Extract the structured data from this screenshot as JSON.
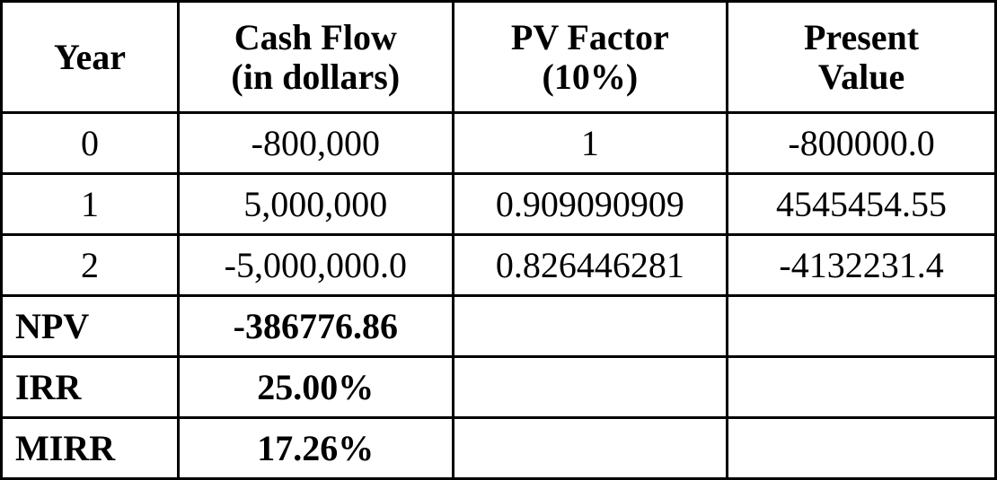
{
  "table": {
    "type": "table",
    "background_color": "#ffffff",
    "border_color": "#000000",
    "border_width": 3,
    "font_family": "Times New Roman",
    "header_fontsize": 40,
    "body_fontsize": 40,
    "columns": [
      {
        "label_line1": "Year",
        "label_line2": "",
        "width_pct": 17.8,
        "align": "center"
      },
      {
        "label_line1": "Cash Flow",
        "label_line2": "(in dollars)",
        "width_pct": 27.6,
        "align": "center"
      },
      {
        "label_line1": "PV Factor",
        "label_line2": "(10%)",
        "width_pct": 27.6,
        "align": "center"
      },
      {
        "label_line1": "Present",
        "label_line2": "Value",
        "width_pct": 27.0,
        "align": "center"
      }
    ],
    "data_rows": [
      {
        "year": "0",
        "cash_flow": "-800,000",
        "pv_factor": "1",
        "present_value": "-800000.0"
      },
      {
        "year": "1",
        "cash_flow": "5,000,000",
        "pv_factor": "0.909090909",
        "present_value": "4545454.55"
      },
      {
        "year": "2",
        "cash_flow": "-5,000,000.0",
        "pv_factor": "0.826446281",
        "present_value": "-4132231.4"
      }
    ],
    "summary_rows": [
      {
        "label": "NPV",
        "value": "-386776.86"
      },
      {
        "label": "IRR",
        "value": "25.00%"
      },
      {
        "label": "MIRR",
        "value": "17.26%"
      }
    ]
  }
}
